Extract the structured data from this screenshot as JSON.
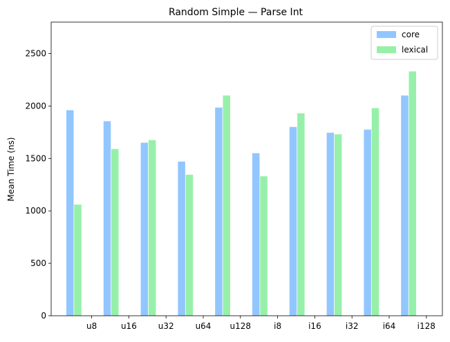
{
  "chart_data": {
    "type": "bar",
    "title": "Random Simple — Parse Int",
    "xlabel": "",
    "ylabel": "Mean Time (ns)",
    "ylim": [
      0,
      2800
    ],
    "yticks": [
      0,
      500,
      1000,
      1500,
      2000,
      2500
    ],
    "categories": [
      "u8",
      "u16",
      "u32",
      "u64",
      "u128",
      "i8",
      "i16",
      "i32",
      "i64",
      "i128"
    ],
    "series": [
      {
        "name": "core",
        "color": "#92c6ff",
        "values": [
          1960,
          1855,
          1650,
          1470,
          1985,
          1550,
          1800,
          1745,
          1775,
          2100
        ]
      },
      {
        "name": "lexical",
        "color": "#97f0aa",
        "values": [
          1060,
          1590,
          1675,
          1345,
          2100,
          1330,
          1930,
          1730,
          1980,
          2330
        ]
      }
    ],
    "legend": "top-right",
    "grid": false
  }
}
